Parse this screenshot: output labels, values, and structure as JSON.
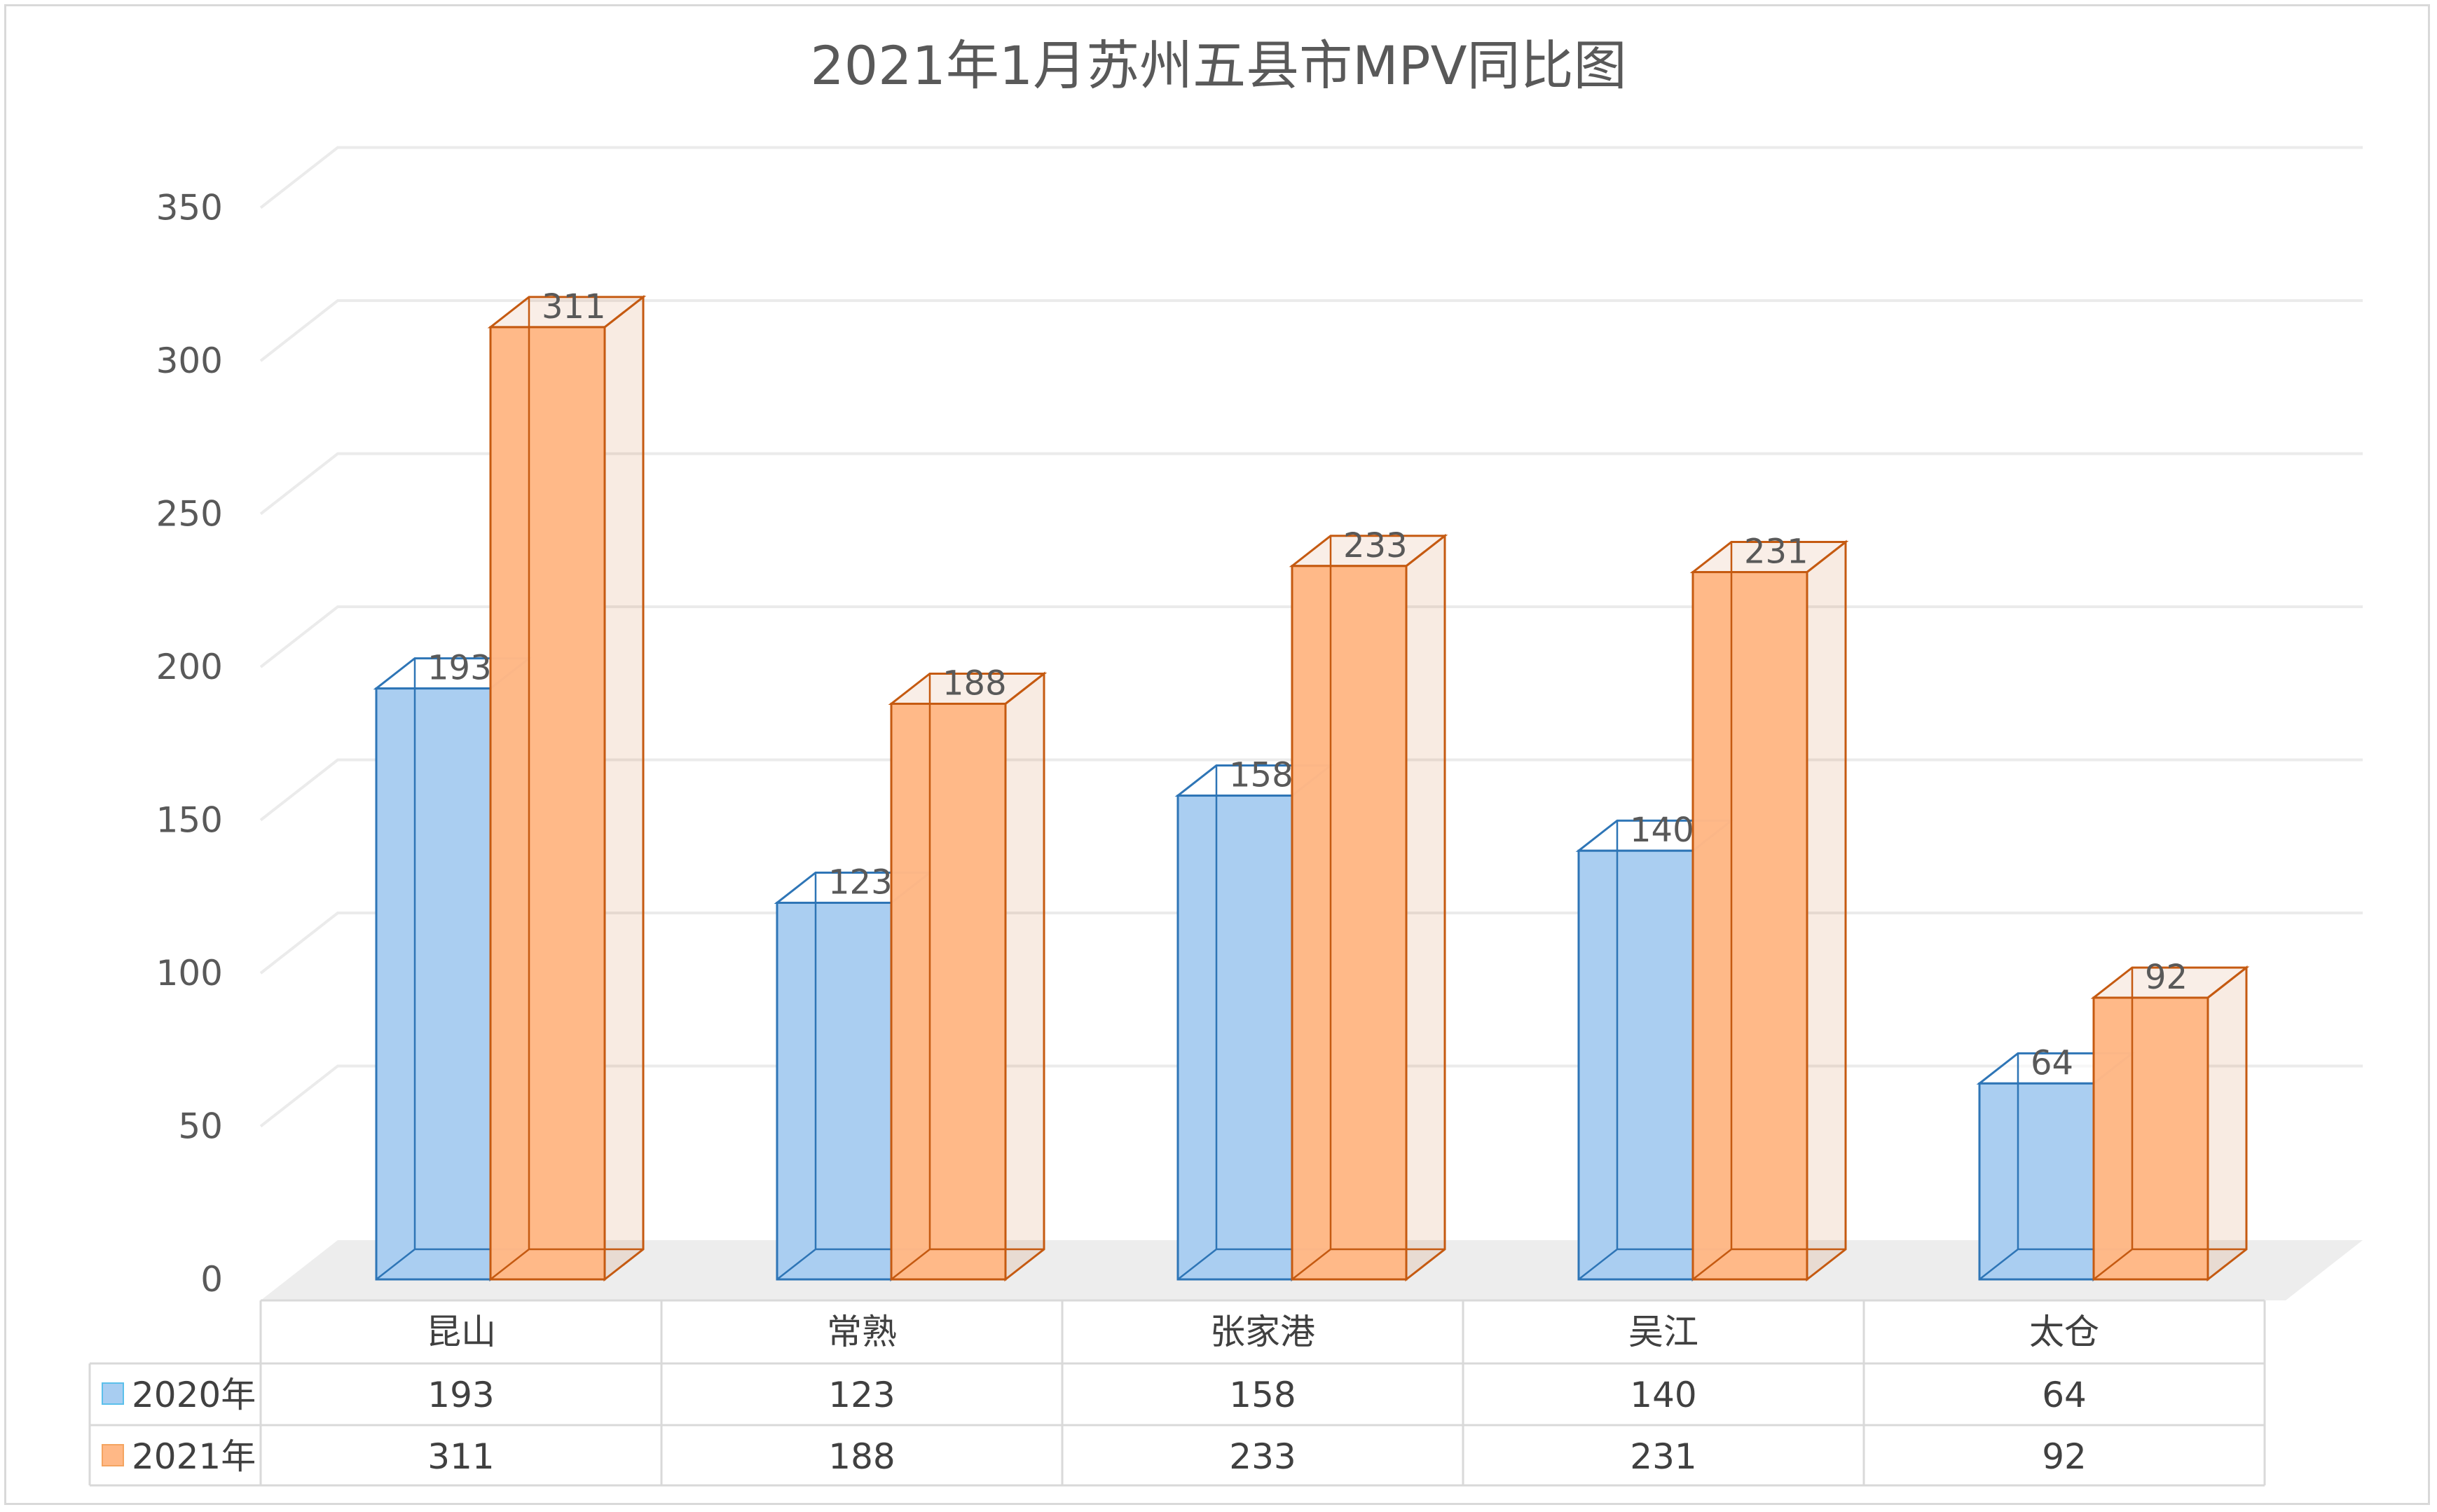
{
  "chart_data": {
    "type": "bar",
    "title": "2021年1月苏州五县市MPV同比图",
    "categories": [
      "昆山",
      "常熟",
      "张家港",
      "吴江",
      "太仓"
    ],
    "series": [
      {
        "name": "2020年",
        "values": [
          193,
          123,
          158,
          140,
          64
        ],
        "color": "#a8cdf1",
        "edge": "#2e75b6"
      },
      {
        "name": "2021年",
        "values": [
          311,
          188,
          233,
          231,
          92
        ],
        "color": "#ffb886",
        "edge": "#c55a11"
      }
    ],
    "yticks": [
      "0",
      "50",
      "100",
      "150",
      "200",
      "250",
      "300",
      "350"
    ],
    "ylim": [
      0,
      350
    ],
    "grid": true,
    "legend": "data-table"
  }
}
